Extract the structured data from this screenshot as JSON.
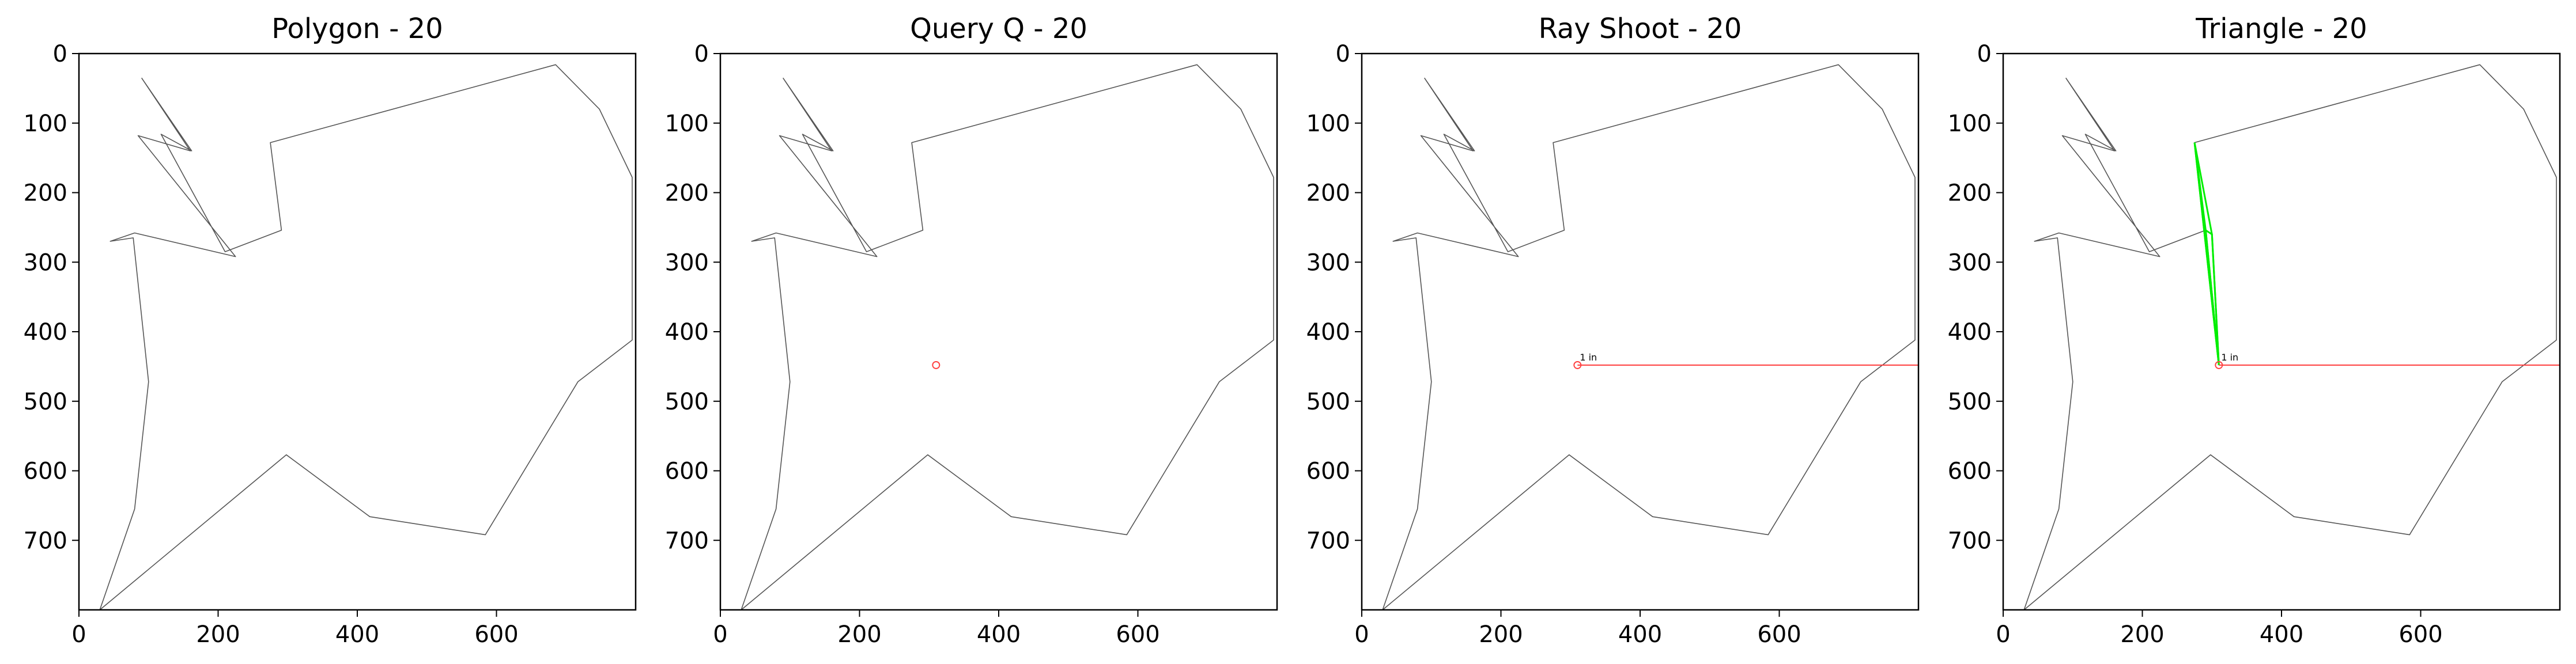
{
  "chart_data": [
    {
      "type": "line",
      "title": "Polygon - 20",
      "xlim": [
        0,
        800
      ],
      "ylim": [
        800,
        0
      ],
      "y_inverted": true,
      "xticks": [
        0,
        200,
        400,
        600
      ],
      "yticks": [
        0,
        100,
        200,
        300,
        400,
        500,
        600,
        700
      ],
      "grid": false,
      "polygon": [
        [
          90,
          35
        ],
        [
          162,
          140
        ],
        [
          118,
          116
        ],
        [
          210,
          285
        ],
        [
          291,
          254
        ],
        [
          275,
          128
        ],
        [
          685,
          16
        ],
        [
          748,
          80
        ],
        [
          795,
          178
        ],
        [
          795,
          412
        ],
        [
          717,
          472
        ],
        [
          584,
          692
        ],
        [
          418,
          666
        ],
        [
          298,
          577
        ],
        [
          30,
          800
        ],
        [
          80,
          655
        ],
        [
          100,
          472
        ],
        [
          78,
          265
        ],
        [
          45,
          270
        ],
        [
          80,
          258
        ],
        [
          225,
          292
        ],
        [
          85,
          118
        ],
        [
          160,
          140
        ],
        [
          90,
          35
        ]
      ],
      "query_point": null,
      "ray": null,
      "triangles": []
    },
    {
      "type": "line",
      "title": "Query Q - 20",
      "xlim": [
        0,
        800
      ],
      "ylim": [
        800,
        0
      ],
      "y_inverted": true,
      "xticks": [
        0,
        200,
        400,
        600
      ],
      "yticks": [
        0,
        100,
        200,
        300,
        400,
        500,
        600,
        700
      ],
      "grid": false,
      "polygon": [
        [
          90,
          35
        ],
        [
          162,
          140
        ],
        [
          118,
          116
        ],
        [
          210,
          285
        ],
        [
          291,
          254
        ],
        [
          275,
          128
        ],
        [
          685,
          16
        ],
        [
          748,
          80
        ],
        [
          795,
          178
        ],
        [
          795,
          412
        ],
        [
          717,
          472
        ],
        [
          584,
          692
        ],
        [
          418,
          666
        ],
        [
          298,
          577
        ],
        [
          30,
          800
        ],
        [
          80,
          655
        ],
        [
          100,
          472
        ],
        [
          78,
          265
        ],
        [
          45,
          270
        ],
        [
          80,
          258
        ],
        [
          225,
          292
        ],
        [
          85,
          118
        ],
        [
          160,
          140
        ],
        [
          90,
          35
        ]
      ],
      "query_point": [
        310,
        448
      ],
      "ray": null,
      "triangles": []
    },
    {
      "type": "line",
      "title": "Ray Shoot - 20",
      "xlim": [
        0,
        800
      ],
      "ylim": [
        800,
        0
      ],
      "y_inverted": true,
      "xticks": [
        0,
        200,
        400,
        600
      ],
      "yticks": [
        0,
        100,
        200,
        300,
        400,
        500,
        600,
        700
      ],
      "grid": false,
      "polygon": [
        [
          90,
          35
        ],
        [
          162,
          140
        ],
        [
          118,
          116
        ],
        [
          210,
          285
        ],
        [
          291,
          254
        ],
        [
          275,
          128
        ],
        [
          685,
          16
        ],
        [
          748,
          80
        ],
        [
          795,
          178
        ],
        [
          795,
          412
        ],
        [
          717,
          472
        ],
        [
          584,
          692
        ],
        [
          418,
          666
        ],
        [
          298,
          577
        ],
        [
          30,
          800
        ],
        [
          80,
          655
        ],
        [
          100,
          472
        ],
        [
          78,
          265
        ],
        [
          45,
          270
        ],
        [
          80,
          258
        ],
        [
          225,
          292
        ],
        [
          85,
          118
        ],
        [
          160,
          140
        ],
        [
          90,
          35
        ]
      ],
      "query_point": [
        310,
        448
      ],
      "ray": [
        [
          310,
          448
        ],
        [
          800,
          448
        ]
      ],
      "annotation": "1 in",
      "triangles": []
    },
    {
      "type": "line",
      "title": "Triangle - 20",
      "xlim": [
        0,
        800
      ],
      "ylim": [
        800,
        0
      ],
      "y_inverted": true,
      "xticks": [
        0,
        200,
        400,
        600
      ],
      "yticks": [
        0,
        100,
        200,
        300,
        400,
        500,
        600,
        700
      ],
      "grid": false,
      "polygon": [
        [
          90,
          35
        ],
        [
          162,
          140
        ],
        [
          118,
          116
        ],
        [
          210,
          285
        ],
        [
          291,
          254
        ],
        [
          275,
          128
        ],
        [
          685,
          16
        ],
        [
          748,
          80
        ],
        [
          795,
          178
        ],
        [
          795,
          412
        ],
        [
          717,
          472
        ],
        [
          584,
          692
        ],
        [
          418,
          666
        ],
        [
          298,
          577
        ],
        [
          30,
          800
        ],
        [
          80,
          655
        ],
        [
          100,
          472
        ],
        [
          78,
          265
        ],
        [
          45,
          270
        ],
        [
          80,
          258
        ],
        [
          225,
          292
        ],
        [
          85,
          118
        ],
        [
          160,
          140
        ],
        [
          90,
          35
        ]
      ],
      "query_point": [
        310,
        448
      ],
      "ray": [
        [
          310,
          448
        ],
        [
          800,
          448
        ]
      ],
      "annotation": "1 in",
      "triangles": [
        [
          [
            275,
            128
          ],
          [
            291,
            254
          ],
          [
            310,
            448
          ]
        ],
        [
          [
            275,
            128
          ],
          [
            300,
            260
          ],
          [
            310,
            448
          ]
        ],
        [
          [
            291,
            254
          ],
          [
            300,
            260
          ],
          [
            310,
            448
          ]
        ]
      ]
    }
  ],
  "colors": {
    "axes": "#000000",
    "polygon": "#555555",
    "query": "#ff4040",
    "ray": "#ff4040",
    "triangle": "#00ee00",
    "background": "#ffffff"
  }
}
